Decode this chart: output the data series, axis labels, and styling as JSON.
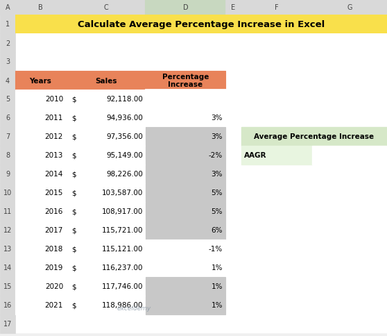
{
  "title": "Calculate Average Percentage Increase in Excel",
  "title_bg": "#F9E04B",
  "col_headers": [
    "Years",
    "Sales",
    "Percentage\nIncrease"
  ],
  "header_bg": "#E8835A",
  "years": [
    2010,
    2011,
    2012,
    2013,
    2014,
    2015,
    2016,
    2017,
    2018,
    2019,
    2020,
    2021
  ],
  "sales": [
    "92,118.00",
    "94,936.00",
    "97,356.00",
    "95,149.00",
    "98,226.00",
    "103,587.00",
    "108,917.00",
    "115,721.00",
    "115,121.00",
    "116,237.00",
    "117,746.00",
    "118,986.00"
  ],
  "pct_increase": [
    "",
    "3%",
    "3%",
    "-2%",
    "3%",
    "5%",
    "5%",
    "6%",
    "-1%",
    "1%",
    "1%",
    "1%"
  ],
  "pct_gray": [
    false,
    false,
    true,
    true,
    true,
    true,
    true,
    true,
    false,
    false,
    true,
    true
  ],
  "side_table_title": "Average Percentage Increase",
  "side_table_label": "AAGR",
  "side_table_title_bg": "#D6E8C8",
  "side_table_label_bg": "#E8F5E0",
  "fig_bg": "#F0F0F0",
  "excel_header_bg": "#D9D9D9",
  "excel_header_selected_bg": "#C8D8C0",
  "cell_bg": "#FFFFFF",
  "gray_cell_bg": "#C8C8C8",
  "grid_color_light": "#D0D0D0",
  "grid_color_dark": "#000000",
  "selected_col_border": "#217346",
  "watermark": "exceldemy"
}
